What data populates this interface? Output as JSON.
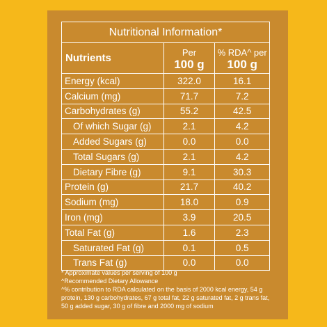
{
  "title": "Nutritional Information*",
  "header": {
    "nutrients": "Nutrients",
    "per_small": "Per",
    "per_big": "100 g",
    "rda_small": "% RDA^ per",
    "rda_big": "100 g"
  },
  "rows": [
    {
      "name": "Energy (kcal)",
      "per": "322.0",
      "rda": "16.1"
    },
    {
      "name": "Calcium (mg)",
      "per": "71.7",
      "rda": "7.2"
    },
    {
      "name": "Carbohydrates (g)",
      "per": "55.2",
      "rda": "42.5"
    },
    {
      "name": "Of which Sugar (g)",
      "per": "2.1",
      "rda": "4.2"
    },
    {
      "name": "Added Sugars (g)",
      "per": "0.0",
      "rda": "0.0"
    },
    {
      "name": "Total Sugars (g)",
      "per": "2.1",
      "rda": "4.2"
    },
    {
      "name": "Dietary Fibre (g)",
      "per": "9.1",
      "rda": "30.3"
    },
    {
      "name": "Protein (g)",
      "per": "21.7",
      "rda": "40.2"
    },
    {
      "name": "Sodium (mg)",
      "per": "18.0",
      "rda": "0.9"
    },
    {
      "name": "Iron (mg)",
      "per": "3.9",
      "rda": "20.5"
    },
    {
      "name": "Total Fat (g)",
      "per": "1.6",
      "rda": "2.3"
    },
    {
      "name": "Saturated Fat (g)",
      "per": "0.1",
      "rda": "0.5"
    },
    {
      "name": "Trans Fat (g)",
      "per": "0.0",
      "rda": "0.0"
    }
  ],
  "footnotes": {
    "approx": "* Approximate values per serving of 100 g",
    "rda": "^Recommended Dietary Allowance",
    "basis": "^% contribution to RDA calculated on the basis of 2000 kcal energy, 54 g protein, 130 g carbohydrates, 67 g total fat, 22 g saturated fat, 2 g trans fat, 50 g added sugar, 30 g of fibre and 2000 mg of sodium"
  },
  "colors": {
    "background": "#f6b81a",
    "panel": "#c98a2e",
    "text": "#ffffff"
  }
}
